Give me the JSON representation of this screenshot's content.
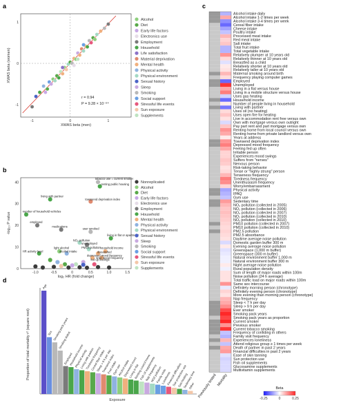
{
  "colors": {
    "Alcohol": "#8ecf7d",
    "Diet": "#59a94a",
    "Early life factors": "#c7a7e6",
    "Electronics use": "#e6dde8",
    "Employment": "#7a7a7a",
    "Household": "#4aa64a",
    "Life satisfaction": "#8c72c7",
    "Material deprivation": "#e08a6f",
    "Mental health": "#f0b07e",
    "Physical activity": "#8fb3e0",
    "Physical environment": "#a3d9c4",
    "Sexual history": "#4b63c6",
    "Sleep": "#c9a9e0",
    "Smoking": "#b8b8b8",
    "Social support": "#6a9fe3",
    "Stressful life events": "#e6587c",
    "Sun exposure": "#f3c7a9",
    "Supplements": "#bfe4c2",
    "Nonreplicated": "#3a3a3a"
  },
  "panel_a": {
    "label": "a",
    "xlabel": "XWAS beta (men)",
    "ylabel": "XWAS beta (women)",
    "r_text": "r = 0.94",
    "p_text": "P = 9.28 × 10⁻⁶⁴",
    "xticks": [
      "-1",
      "0",
      "1"
    ],
    "yticks": [
      "-1",
      "0",
      "1"
    ],
    "legend": [
      "Alcohol",
      "Diet",
      "Early life factors",
      "Electronics use",
      "Employment",
      "Household",
      "Life satisfaction",
      "Material deprivation",
      "Mental health",
      "Physical activity",
      "Physical environment",
      "Sexual history",
      "Sleep",
      "Smoking",
      "Social support",
      "Stressful life events",
      "Sun exposure",
      "Supplements"
    ]
  },
  "panel_b": {
    "label": "b",
    "xlabel": "log₂ HR (fold change)",
    "ylabel": "-log₁₀ P value",
    "xticks": [
      "-1.0",
      "-0.5",
      "0",
      "0.5",
      "1.0",
      "1.5"
    ],
    "yticks": [
      "0",
      "10",
      "20",
      "30",
      "40"
    ],
    "legend": [
      "Nonreplicated",
      "Alcohol",
      "Diet",
      "Early life factors",
      "Electronics use",
      "Employment",
      "Household",
      "Mental health",
      "Physical activity",
      "Physical environment",
      "Sexual history",
      "Sleep",
      "Smoking",
      "Social support",
      "Stressful life events",
      "Sun exposure",
      "Supplements"
    ],
    "annotations": [
      "tobacco use = current smoker",
      "renting public housing",
      "living with partner",
      "townsend deprivation index",
      "number of household vehicles",
      "employed",
      "medications",
      "user smoked",
      "living in flat or apartment",
      "NO₂ pollution",
      "unemployed",
      "PM10 pollution",
      "light alcohol",
      "alcohol intake",
      "HR activity level",
      "household income",
      "dissatisfied",
      "depressed mood frequency",
      "tired mood frequency",
      "fed up feelings"
    ]
  },
  "panel_c": {
    "label": "c",
    "rows": [
      "Alcohol intake daily",
      "Alcohol intake 1-2 times per week",
      "Alcohol intake 3-4 times per week",
      "Cereal fiber intake",
      "Cheese intake",
      "Poultry intake",
      "Processed meat intake",
      "Red meat intake",
      "Salt intake",
      "Total fruit intake",
      "Total vegetable intake",
      "Relatively plumper at 10 years old",
      "Relatively thinner at 10 years old",
      "Breastfed as a child",
      "Relatively shorter at 10 years old",
      "Relatively taller at 10 years old",
      "Maternal smoking around birth",
      "Frequency playing computer games",
      "Employed",
      "Unemployed",
      "Living in a flat versus house",
      "Living in a mobile structure versus house",
      "Uses gas heating",
      "Household income",
      "Number of people living in household",
      "Living with partner",
      "Uses oil (no heating)",
      "Uses open fire for heating",
      "Live in accommodation rent free versus own",
      "Own with mortgage versus own outright",
      "Pay part rent and part mortgage versus own",
      "Renting home from local council versus own",
      "Renting home from private landlord versus own",
      "Years at address",
      "Townsend deprivation index",
      "Depressed mood frequency",
      "Feeling fed up often",
      "Irritable person",
      "Experiences mood swings",
      "Suffers from \"nerves\"",
      "Nervous person",
      "Risk-taking behavior",
      "Tense or \"highly strung\" person",
      "Tenseness frequency",
      "Tiredness frequency",
      "Unenthusiasm frequency",
      "Worry/embarrassment",
      "Physical activity",
      "IPAQ",
      "Gym use",
      "Sedentary time",
      "NO₂ pollution (collected in 2005)",
      "NO₂ pollution (collected in 2006)",
      "NO₂ pollution (collected in 2007)",
      "NO₂ pollution (collected in 2010)",
      "NOₓ pollution (collected in 2010)",
      "PM10 pollution (collected in 2007)",
      "PM10 pollution (collected in 2010)",
      "PM2.5 pollution",
      "PM2.5 absorbance",
      "Daytime average noise pollution",
      "Domestic garden buffer 300 m",
      "Evening average noise pollution",
      "Greenspace (1,000 m buffer)",
      "Greenspace (300 m buffer)",
      "Natural environment buffer 1,000 m",
      "Natural environment buffer 300 m",
      "Night average noise pollution",
      "Rural population density",
      "Sum of length of major roads within 100m",
      "Noise pollution (24 h average)",
      "Total traffic load on major roads within 100m",
      "Same sex intercourse",
      "Definitely morning person (chronotype)",
      "Definitely evening person (chronotype)",
      "More evening than morning person (chronotype)",
      "Nap frequency",
      "Sleep < 7 h per day",
      "Sleep > 9 h per day",
      "Ever smoker",
      "Smoking pack years",
      "Smoking pack years as proportion",
      "Current smoker",
      "Previous smoker",
      "Current tobacco smoking",
      "Frequency of confiding in others",
      "Family visit frequency",
      "Experiences loneliness",
      "Attend religious group ≥ 1 times per week",
      "Death of partner in past 2 years",
      "Financial difficulties in past 2 years",
      "Ease of skin tanning",
      "Sun protection use",
      "Fish oil supplements",
      "Glucosamine supplements",
      "Multivitamin supplements"
    ],
    "columns": [
      "Previously tested",
      "Mortality"
    ],
    "legend_title": "Beta",
    "legend_ticks": [
      "-0.25",
      "0",
      "0.25"
    ],
    "previously_tested": [
      1,
      1,
      1,
      0,
      0,
      0,
      0,
      0,
      0,
      0,
      0,
      0,
      0,
      0,
      0,
      0,
      1,
      0,
      1,
      1,
      0,
      0,
      0,
      1,
      0,
      1,
      0,
      0,
      0,
      0,
      0,
      0,
      0,
      0,
      1,
      1,
      0,
      0,
      0,
      0,
      0,
      0,
      0,
      0,
      0,
      0,
      0,
      1,
      1,
      0,
      1,
      1,
      0,
      0,
      0,
      0,
      1,
      0,
      1,
      0,
      0,
      0,
      0,
      0,
      0,
      0,
      0,
      0,
      0,
      0,
      0,
      0,
      0,
      0,
      0,
      0,
      0,
      1,
      1,
      1,
      1,
      0,
      1,
      1,
      1,
      1,
      0,
      1,
      0,
      1,
      0,
      0,
      0,
      0,
      0,
      0
    ],
    "mortality_beta": [
      -0.1,
      0.12,
      -0.15,
      -0.2,
      -0.12,
      -0.08,
      0.1,
      0.06,
      0.08,
      -0.1,
      -0.1,
      0.15,
      0.05,
      -0.04,
      0.03,
      0.04,
      0.1,
      0.05,
      -0.2,
      0.28,
      0.12,
      0.18,
      -0.06,
      -0.2,
      0.03,
      -0.18,
      0.05,
      0.08,
      0.04,
      -0.05,
      0.08,
      0.15,
      0.12,
      0.03,
      0.15,
      0.18,
      0.12,
      0.06,
      0.06,
      0.08,
      0.07,
      0.04,
      0.05,
      0.1,
      0.18,
      0.16,
      0.06,
      -0.12,
      -0.1,
      -0.08,
      0.14,
      0.1,
      0.08,
      0.09,
      0.08,
      0.07,
      0.06,
      0.05,
      0.06,
      0.05,
      0.04,
      -0.05,
      0.03,
      -0.04,
      -0.03,
      -0.02,
      -0.02,
      0.03,
      -0.02,
      0.04,
      0.04,
      0.04,
      0.15,
      -0.03,
      0.06,
      0.04,
      0.1,
      0.12,
      0.16,
      0.25,
      0.3,
      0.26,
      0.4,
      0.15,
      0.28,
      -0.08,
      -0.1,
      0.1,
      -0.08,
      0.12,
      0.14,
      -0.04,
      -0.06,
      -0.05,
      -0.05,
      -0.05
    ]
  },
  "panel_d": {
    "label": "d",
    "ylabel": "Proportion of total mortality r² (square root)",
    "xlabel": "Exposure",
    "bars": [
      {
        "label": "Age",
        "value": 1.0,
        "color": "#5b4fc9"
      },
      {
        "label": "Sex",
        "value": 0.55,
        "color": "#6a8fe0"
      },
      {
        "label": "Smoking pack years",
        "value": 0.5,
        "color": "#b8b8b8"
      },
      {
        "label": "Smoking status",
        "value": 0.42,
        "color": "#b8b8b8"
      },
      {
        "label": "Employed",
        "value": 0.27,
        "color": "#7a7a7a"
      },
      {
        "label": "Household income",
        "value": 0.26,
        "color": "#4aa64a"
      },
      {
        "label": "Physical activity",
        "value": 0.24,
        "color": "#8fb3e0"
      },
      {
        "label": "Living with partner",
        "value": 0.23,
        "color": "#4aa64a"
      },
      {
        "label": "Tiredness frequency",
        "value": 0.22,
        "color": "#f0b07e"
      },
      {
        "label": "Cereal fiber intake",
        "value": 0.21,
        "color": "#59a94a"
      },
      {
        "label": "Sleep > 9 h per day",
        "value": 0.2,
        "color": "#c9a9e0"
      },
      {
        "label": "Townsend index",
        "value": 0.19,
        "color": "#e08a6f"
      },
      {
        "label": "Fruit intake",
        "value": 0.18,
        "color": "#59a94a"
      },
      {
        "label": "Gym use",
        "value": 0.17,
        "color": "#8fb3e0"
      },
      {
        "label": "Alcohol intake",
        "value": 0.16,
        "color": "#8ecf7d"
      },
      {
        "label": "Depressed mood",
        "value": 0.15,
        "color": "#f0b07e"
      },
      {
        "label": "Living in flat",
        "value": 0.14,
        "color": "#4aa64a"
      },
      {
        "label": "Renting council home",
        "value": 0.13,
        "color": "#4aa64a"
      },
      {
        "label": "Fish oil supplements",
        "value": 0.12,
        "color": "#bfe4c2"
      },
      {
        "label": "Nap frequency",
        "value": 0.11,
        "color": "#c9a9e0"
      },
      {
        "label": "NO2 pollution",
        "value": 0.1,
        "color": "#a3d9c4"
      },
      {
        "label": "Family visits",
        "value": 0.09,
        "color": "#6a9fe3"
      },
      {
        "label": "Loneliness",
        "value": 0.08,
        "color": "#6a9fe3"
      },
      {
        "label": "Financial difficulties",
        "value": 0.07,
        "color": "#e6587c"
      },
      {
        "label": "Sun protection use",
        "value": 0.06,
        "color": "#f3c7a9"
      },
      {
        "label": "Gas heating",
        "value": 0.05,
        "color": "#4aa64a"
      },
      {
        "label": "Sedentary time",
        "value": 0.04,
        "color": "#8fb3e0"
      },
      {
        "label": "Other",
        "value": 0.03,
        "color": "#f3c7a9"
      }
    ]
  },
  "chart_data": [
    {
      "type": "scatter",
      "title": "",
      "xlabel": "XWAS beta (men)",
      "ylabel": "XWAS beta (women)",
      "xlim": [
        -1.3,
        1.6
      ],
      "ylim": [
        -1.3,
        1.2
      ],
      "points": [
        {
          "x": -1.0,
          "y": -1.05,
          "c": "Employment"
        },
        {
          "x": -0.8,
          "y": -0.7,
          "c": "Household"
        },
        {
          "x": -0.7,
          "y": -0.55,
          "c": "Physical activity"
        },
        {
          "x": -0.6,
          "y": -0.62,
          "c": "Diet"
        },
        {
          "x": -0.55,
          "y": -0.45,
          "c": "Social support"
        },
        {
          "x": -0.5,
          "y": -0.5,
          "c": "Sleep"
        },
        {
          "x": -0.45,
          "y": -0.38,
          "c": "Alcohol"
        },
        {
          "x": -0.4,
          "y": -0.42,
          "c": "Physical environment"
        },
        {
          "x": -0.35,
          "y": -0.3,
          "c": "Diet"
        },
        {
          "x": -0.3,
          "y": -0.35,
          "c": "Household"
        },
        {
          "x": -0.25,
          "y": -0.2,
          "c": "Supplements"
        },
        {
          "x": -0.2,
          "y": -0.25,
          "c": "Mental health"
        },
        {
          "x": -0.15,
          "y": -0.1,
          "c": "Alcohol"
        },
        {
          "x": -0.1,
          "y": -0.15,
          "c": "Sun exposure"
        },
        {
          "x": -0.05,
          "y": -0.02,
          "c": "Physical environment"
        },
        {
          "x": 0.0,
          "y": 0.03,
          "c": "Diet"
        },
        {
          "x": 0.05,
          "y": 0.0,
          "c": "Smoking"
        },
        {
          "x": 0.1,
          "y": 0.12,
          "c": "Mental health"
        },
        {
          "x": 0.15,
          "y": 0.1,
          "c": "Alcohol"
        },
        {
          "x": 0.2,
          "y": 0.25,
          "c": "Sleep"
        },
        {
          "x": 0.25,
          "y": 0.2,
          "c": "Mental health"
        },
        {
          "x": 0.3,
          "y": 0.35,
          "c": "Material deprivation"
        },
        {
          "x": 0.35,
          "y": 0.3,
          "c": "Physical environment"
        },
        {
          "x": 0.4,
          "y": 0.42,
          "c": "Mental health"
        },
        {
          "x": 0.45,
          "y": 0.4,
          "c": "Household"
        },
        {
          "x": 0.5,
          "y": 0.55,
          "c": "Smoking"
        },
        {
          "x": 0.55,
          "y": 0.5,
          "c": "Stressful life events"
        },
        {
          "x": 0.6,
          "y": 0.62,
          "c": "Diet"
        },
        {
          "x": 0.65,
          "y": 0.58,
          "c": "Alcohol"
        },
        {
          "x": 0.7,
          "y": 0.7,
          "c": "Physical environment"
        },
        {
          "x": 0.8,
          "y": 0.78,
          "c": "Mental health"
        },
        {
          "x": 0.9,
          "y": 0.85,
          "c": "Smoking"
        },
        {
          "x": 1.0,
          "y": 0.95,
          "c": "Employment"
        },
        {
          "x": -0.9,
          "y": -0.8,
          "c": "Sexual history"
        },
        {
          "x": -0.65,
          "y": -0.7,
          "c": "Early life factors"
        },
        {
          "x": 0.35,
          "y": 0.45,
          "c": "Social support"
        },
        {
          "x": 0.1,
          "y": -0.05,
          "c": "Electronics use"
        },
        {
          "x": -0.2,
          "y": -0.1,
          "c": "Life satisfaction"
        },
        {
          "x": 0.2,
          "y": 0.1,
          "c": "Supplements"
        }
      ],
      "annotations": [
        "r = 0.94",
        "P = 9.28 × 10⁻⁶⁴"
      ]
    },
    {
      "type": "scatter",
      "title": "",
      "xlabel": "log₂ HR (fold change)",
      "ylabel": "-log₁₀ P value",
      "xlim": [
        -1.4,
        1.6
      ],
      "ylim": [
        0,
        42
      ],
      "points": [
        {
          "x": 0.7,
          "y": 40,
          "c": "Smoking"
        },
        {
          "x": 0.75,
          "y": 38,
          "c": "Household"
        },
        {
          "x": -0.6,
          "y": 32,
          "c": "Household"
        },
        {
          "x": 0.5,
          "y": 31,
          "c": "Material deprivation"
        },
        {
          "x": -1.25,
          "y": 25,
          "c": "Household"
        },
        {
          "x": -0.95,
          "y": 20,
          "c": "Employment"
        },
        {
          "x": -0.3,
          "y": 18,
          "c": "Employment"
        },
        {
          "x": 0.5,
          "y": 17,
          "c": "Smoking"
        },
        {
          "x": 1.05,
          "y": 14,
          "c": "Household"
        },
        {
          "x": 0.2,
          "y": 12,
          "c": "Physical environment"
        },
        {
          "x": 0.4,
          "y": 11,
          "c": "Employment"
        },
        {
          "x": 0.45,
          "y": 9,
          "c": "Physical environment"
        },
        {
          "x": -0.35,
          "y": 8,
          "c": "Alcohol"
        },
        {
          "x": -0.15,
          "y": 7,
          "c": "Physical activity"
        },
        {
          "x": -0.9,
          "y": 7,
          "c": "Household"
        },
        {
          "x": 0.9,
          "y": 8,
          "c": "Mental health"
        },
        {
          "x": 0.7,
          "y": 7,
          "c": "Mental health"
        },
        {
          "x": 0.55,
          "y": 5,
          "c": "Mental health"
        },
        {
          "x": 0.8,
          "y": 5,
          "c": "Mental health"
        },
        {
          "x": -0.6,
          "y": 4,
          "c": "Diet"
        },
        {
          "x": -0.4,
          "y": 3,
          "c": "Physical activity"
        },
        {
          "x": 0.3,
          "y": 3,
          "c": "Sleep"
        },
        {
          "x": 0.1,
          "y": 2,
          "c": "Supplements"
        },
        {
          "x": -0.2,
          "y": 2,
          "c": "Diet"
        },
        {
          "x": 0.6,
          "y": 2,
          "c": "Stressful life events"
        },
        {
          "x": -1.0,
          "y": 1,
          "c": "Nonreplicated"
        },
        {
          "x": -0.8,
          "y": 0.5,
          "c": "Nonreplicated"
        },
        {
          "x": -0.5,
          "y": 0.8,
          "c": "Nonreplicated"
        },
        {
          "x": -0.1,
          "y": 0.5,
          "c": "Nonreplicated"
        },
        {
          "x": 0.2,
          "y": 0.6,
          "c": "Nonreplicated"
        },
        {
          "x": 0.4,
          "y": 0.4,
          "c": "Nonreplicated"
        },
        {
          "x": 0.7,
          "y": 0.7,
          "c": "Nonreplicated"
        },
        {
          "x": 1.0,
          "y": 0.5,
          "c": "Nonreplicated"
        },
        {
          "x": -0.3,
          "y": 1.2,
          "c": "Sun exposure"
        },
        {
          "x": 0.0,
          "y": 1.5,
          "c": "Early life factors"
        },
        {
          "x": 0.3,
          "y": 1.8,
          "c": "Sexual history"
        }
      ]
    },
    {
      "type": "heatmap",
      "title": "",
      "columns": [
        "Previously tested",
        "Mortality"
      ],
      "legend_title": "Beta",
      "legend_range": [
        -0.25,
        0.25
      ]
    },
    {
      "type": "bar",
      "title": "",
      "xlabel": "Exposure",
      "ylabel": "Proportion of total mortality r² (square root)",
      "ylim": [
        0,
        1
      ]
    }
  ]
}
